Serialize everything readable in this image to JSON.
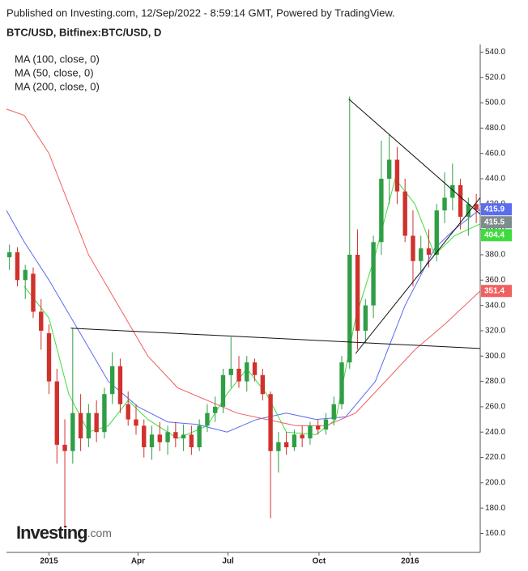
{
  "header": "Published on Investing.com, 12/Sep/2022 - 8:59:14 GMT, Powered by TradingView.",
  "chart_data": {
    "type": "candlestick",
    "title": "BTC/USD, Bitfinex:BTC/USD, D",
    "up_color": "#2f9e44",
    "down_color": "#d0312d",
    "x": [
      -40,
      -32,
      -24,
      -16,
      -8,
      0,
      8,
      16,
      24,
      32,
      40,
      48,
      56,
      64,
      72,
      80,
      88,
      96,
      104,
      112,
      120,
      128,
      136,
      144,
      152,
      160,
      168,
      176,
      184,
      192,
      200,
      208,
      216,
      224,
      232,
      240,
      248,
      256,
      264,
      272,
      280,
      288,
      296,
      304,
      312,
      320,
      328,
      336,
      344,
      352,
      360,
      368,
      376,
      384,
      392,
      400,
      408,
      416,
      424,
      432
    ],
    "open": [
      378,
      382,
      360,
      365,
      335,
      318,
      280,
      230,
      225,
      255,
      235,
      255,
      240,
      270,
      292,
      262,
      250,
      245,
      228,
      238,
      232,
      240,
      235,
      238,
      228,
      245,
      255,
      260,
      285,
      290,
      280,
      295,
      285,
      270,
      225,
      232,
      228,
      238,
      235,
      245,
      242,
      250,
      262,
      295,
      380,
      320,
      340,
      390,
      440,
      455,
      430,
      395,
      375,
      385,
      380,
      415,
      425,
      435,
      410,
      420
    ],
    "high": [
      388,
      386,
      372,
      370,
      345,
      325,
      290,
      250,
      322,
      270,
      262,
      265,
      275,
      303,
      298,
      272,
      262,
      250,
      245,
      248,
      245,
      248,
      246,
      245,
      250,
      262,
      268,
      290,
      315,
      300,
      300,
      298,
      290,
      272,
      240,
      240,
      242,
      245,
      248,
      250,
      255,
      268,
      300,
      505,
      400,
      345,
      395,
      470,
      475,
      465,
      440,
      415,
      395,
      400,
      420,
      445,
      452,
      440,
      425,
      428
    ],
    "low": [
      368,
      355,
      345,
      330,
      305,
      270,
      215,
      165,
      215,
      225,
      228,
      232,
      235,
      262,
      255,
      245,
      238,
      220,
      218,
      225,
      222,
      228,
      225,
      222,
      225,
      240,
      248,
      255,
      275,
      275,
      272,
      280,
      265,
      172,
      208,
      222,
      225,
      228,
      230,
      238,
      238,
      245,
      258,
      290,
      305,
      310,
      330,
      380,
      420,
      420,
      390,
      355,
      365,
      370,
      375,
      405,
      415,
      400,
      395,
      405
    ],
    "close": [
      382,
      360,
      368,
      335,
      320,
      280,
      230,
      225,
      255,
      235,
      255,
      240,
      270,
      292,
      262,
      250,
      245,
      228,
      238,
      232,
      240,
      235,
      238,
      228,
      245,
      255,
      260,
      285,
      290,
      280,
      295,
      285,
      270,
      225,
      232,
      228,
      238,
      235,
      245,
      242,
      250,
      262,
      295,
      380,
      320,
      340,
      390,
      440,
      455,
      430,
      395,
      375,
      385,
      380,
      415,
      425,
      435,
      410,
      420,
      415.5
    ],
    "series": [
      {
        "name": "MA (100, close, 0)",
        "color": "#5a6cf0",
        "x": [
          -43,
          -25,
          0,
          30,
          60,
          90,
          120,
          150,
          180,
          210,
          240,
          270,
          300,
          330,
          360,
          390,
          410,
          436
        ],
        "values": [
          415,
          390,
          360,
          320,
          280,
          260,
          248,
          246,
          240,
          250,
          255,
          250,
          252,
          280,
          340,
          385,
          400,
          415.9
        ]
      },
      {
        "name": "MA (50, close, 0)",
        "color": "#3ddc3d",
        "x": [
          -25,
          0,
          20,
          40,
          60,
          80,
          100,
          130,
          160,
          180,
          200,
          220,
          240,
          270,
          290,
          310,
          330,
          350,
          370,
          390,
          410,
          436
        ],
        "values": [
          355,
          330,
          270,
          240,
          245,
          265,
          250,
          235,
          245,
          270,
          290,
          270,
          240,
          238,
          250,
          330,
          380,
          440,
          420,
          380,
          395,
          404.4
        ]
      },
      {
        "name": "MA (200, close, 0)",
        "color": "#f06060",
        "x": [
          -43,
          -25,
          0,
          20,
          40,
          70,
          100,
          130,
          160,
          190,
          220,
          250,
          280,
          310,
          340,
          370,
          400,
          436
        ],
        "values": [
          495,
          490,
          460,
          420,
          380,
          340,
          300,
          275,
          265,
          255,
          250,
          245,
          245,
          255,
          280,
          305,
          325,
          351.4
        ]
      }
    ],
    "trendlines": [
      {
        "x": [
          22,
          436
        ],
        "y": [
          322,
          306
        ]
      },
      {
        "x": [
          303,
          436
        ],
        "y": [
          503,
          412
        ]
      },
      {
        "x": [
          310,
          436
        ],
        "y": [
          302,
          425
        ]
      }
    ],
    "xlim": [
      -43,
      436
    ],
    "xticks": [
      {
        "value": 0,
        "label": "2015"
      },
      {
        "value": 90,
        "label": "Apr"
      },
      {
        "value": 181,
        "label": "Jul"
      },
      {
        "value": 273,
        "label": "Oct"
      },
      {
        "value": 365,
        "label": "2016"
      }
    ],
    "ylim": [
      145,
      546
    ],
    "yticks": [
      {
        "value": 160,
        "label": "160.0"
      },
      {
        "value": 180,
        "label": "180.0"
      },
      {
        "value": 200,
        "label": "200.0"
      },
      {
        "value": 220,
        "label": "220.0"
      },
      {
        "value": 240,
        "label": "240.0"
      },
      {
        "value": 260,
        "label": "260.0"
      },
      {
        "value": 280,
        "label": "280.0"
      },
      {
        "value": 300,
        "label": "300.0"
      },
      {
        "value": 320,
        "label": "320.0"
      },
      {
        "value": 340,
        "label": "340.0"
      },
      {
        "value": 360,
        "label": "360.0"
      },
      {
        "value": 380,
        "label": "380.0"
      },
      {
        "value": 400,
        "label": "400.0"
      },
      {
        "value": 420,
        "label": "420.0"
      },
      {
        "value": 440,
        "label": "440.0"
      },
      {
        "value": 460,
        "label": "460.0"
      },
      {
        "value": 480,
        "label": "480.0"
      },
      {
        "value": 500,
        "label": "500.0"
      },
      {
        "value": 520,
        "label": "520.0"
      },
      {
        "value": 540,
        "label": "540.0"
      }
    ],
    "last_price_color": "#7f8c8d",
    "grid": false
  },
  "logo": {
    "name": "Investing",
    "suffix": ".com"
  }
}
